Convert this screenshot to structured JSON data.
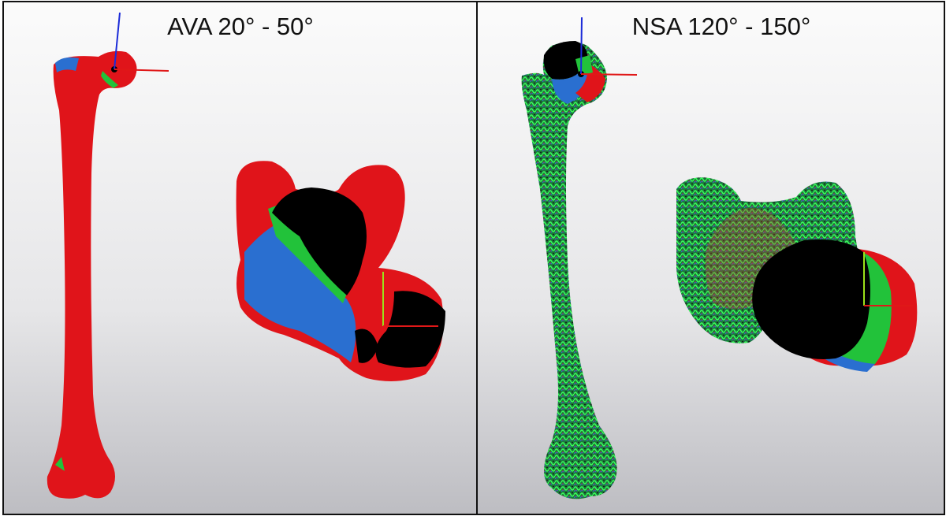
{
  "panels": [
    {
      "title": "AVA 20° - 50°"
    },
    {
      "title": "NSA 120° - 150°"
    }
  ]
}
